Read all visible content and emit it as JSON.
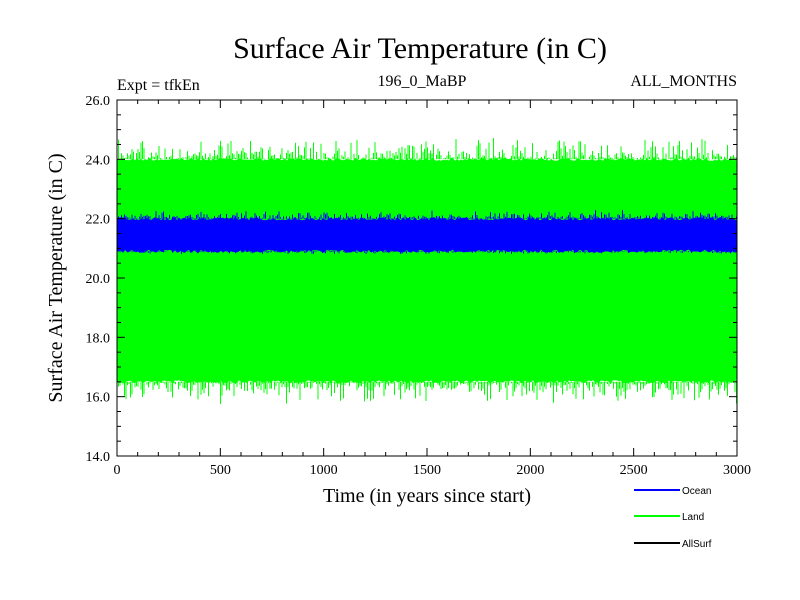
{
  "chart_data": {
    "type": "line",
    "title": "Surface Air Temperature (in C)",
    "subtitle_left": "Expt = tfkEn",
    "subtitle_center": "196_0_MaBP",
    "subtitle_right": "ALL_MONTHS",
    "xlabel": "Time (in years since start)",
    "ylabel": "Surface Air Temperature (in C)",
    "xlim": [
      0,
      3000
    ],
    "ylim": [
      14.0,
      26.0
    ],
    "x_ticks": [
      0,
      500,
      1000,
      1500,
      2000,
      2500,
      3000
    ],
    "y_ticks": [
      "14.0",
      "16.0",
      "18.0",
      "20.0",
      "22.0",
      "24.0",
      "26.0"
    ],
    "grid": false,
    "legend_position": "bottom-right",
    "series": [
      {
        "name": "Land",
        "color": "#00ff00",
        "band_low": 16.5,
        "band_high": 24.0,
        "min": 15.7,
        "max": 24.8
      },
      {
        "name": "Ocean",
        "color": "#0000ff",
        "band_low": 20.9,
        "band_high": 22.0,
        "min": 20.8,
        "max": 22.3
      },
      {
        "name": "AllSurf",
        "color": "#000000"
      }
    ],
    "legend": [
      {
        "name": "Ocean",
        "color": "#0000ff"
      },
      {
        "name": "Land",
        "color": "#00ff00"
      },
      {
        "name": "AllSurf",
        "color": "#000000"
      }
    ]
  }
}
